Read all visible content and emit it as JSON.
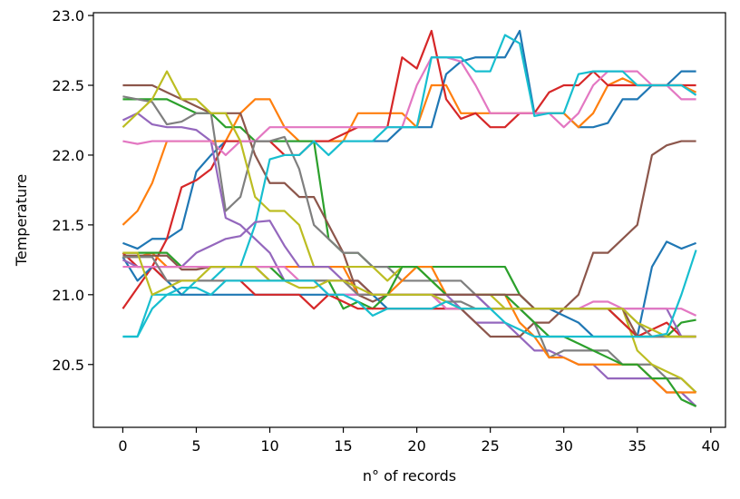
{
  "chart_data": {
    "type": "line",
    "title": "",
    "xlabel": "n° of records",
    "ylabel": "Temperature",
    "xlim": [
      -2,
      41
    ],
    "ylim": [
      20.05,
      23.02
    ],
    "xticks": [
      0,
      5,
      10,
      15,
      20,
      25,
      30,
      35,
      40
    ],
    "xtick_labels": [
      "0",
      "5",
      "10",
      "15",
      "20",
      "25",
      "30",
      "35",
      "40"
    ],
    "yticks": [
      20.5,
      21.0,
      21.5,
      22.0,
      22.5,
      23.0
    ],
    "ytick_labels": [
      "20.5",
      "21.0",
      "21.5",
      "22.0",
      "22.5",
      "23.0"
    ],
    "grid": false,
    "legend": "none",
    "series": [
      {
        "color": "#1f77b4",
        "values": [
          21.37,
          21.33,
          21.4,
          21.4,
          21.47,
          21.88,
          22.0,
          22.1,
          22.1,
          22.1,
          22.1,
          22.1,
          22.1,
          22.1,
          22.1,
          22.1,
          22.1,
          22.1,
          22.1,
          22.2,
          22.2,
          22.2,
          22.58,
          22.67,
          22.7,
          22.7,
          22.7,
          22.89,
          22.3,
          22.3,
          22.3,
          22.2,
          22.2,
          22.23,
          22.4,
          22.4,
          22.5,
          22.5,
          22.6,
          22.6
        ]
      },
      {
        "color": "#ff7f0e",
        "values": [
          21.5,
          21.6,
          21.8,
          22.1,
          22.1,
          22.1,
          22.1,
          22.1,
          22.3,
          22.4,
          22.4,
          22.2,
          22.1,
          22.1,
          22.1,
          22.1,
          22.3,
          22.3,
          22.3,
          22.3,
          22.2,
          22.5,
          22.5,
          22.3,
          22.3,
          22.3,
          22.3,
          22.3,
          22.3,
          22.3,
          22.3,
          22.2,
          22.3,
          22.5,
          22.55,
          22.5,
          22.5,
          22.5,
          22.5,
          22.45
        ]
      },
      {
        "color": "#2ca02c",
        "values": [
          22.4,
          22.4,
          22.4,
          22.4,
          22.35,
          22.3,
          22.3,
          22.2,
          22.2,
          22.1,
          22.1,
          22.1,
          22.1,
          22.1,
          21.4,
          21.3,
          21.3,
          21.2,
          21.2,
          21.2,
          21.2,
          21.2,
          21.2,
          21.2,
          21.2,
          21.2,
          21.2,
          21.0,
          20.9,
          20.9,
          20.9,
          20.9,
          20.9,
          20.9,
          20.8,
          20.7,
          20.7,
          20.7,
          20.8,
          20.82
        ]
      },
      {
        "color": "#d62728",
        "values": [
          20.9,
          21.05,
          21.2,
          21.4,
          21.77,
          21.82,
          21.9,
          22.1,
          22.1,
          22.1,
          22.1,
          22.0,
          22.0,
          22.1,
          22.1,
          22.15,
          22.2,
          22.2,
          22.2,
          22.7,
          22.62,
          22.89,
          22.4,
          22.26,
          22.3,
          22.2,
          22.2,
          22.3,
          22.3,
          22.45,
          22.5,
          22.5,
          22.6,
          22.5,
          22.5,
          22.5,
          22.5,
          22.5,
          22.5,
          22.5
        ]
      },
      {
        "color": "#9467bd",
        "values": [
          22.25,
          22.3,
          22.22,
          22.2,
          22.2,
          22.18,
          22.1,
          21.55,
          21.5,
          21.4,
          21.3,
          21.1,
          21.1,
          21.1,
          21.1,
          21.1,
          21.0,
          21.0,
          21.0,
          21.0,
          21.0,
          21.0,
          21.0,
          20.9,
          20.8,
          20.8,
          20.8,
          20.7,
          20.6,
          20.6,
          20.55,
          20.5,
          20.5,
          20.4,
          20.4,
          20.4,
          20.4,
          20.3,
          20.3,
          20.2
        ]
      },
      {
        "color": "#8c564b",
        "values": [
          22.5,
          22.5,
          22.5,
          22.45,
          22.4,
          22.35,
          22.3,
          22.3,
          22.3,
          22.0,
          21.8,
          21.8,
          21.7,
          21.7,
          21.5,
          21.3,
          21.0,
          20.95,
          21.0,
          21.0,
          21.0,
          21.0,
          20.9,
          20.9,
          20.8,
          20.7,
          20.7,
          20.7,
          20.8,
          20.8,
          20.9,
          21.0,
          21.3,
          21.3,
          21.4,
          21.5,
          22.0,
          22.07,
          22.1,
          22.1
        ]
      },
      {
        "color": "#e377c2",
        "values": [
          22.1,
          22.08,
          22.1,
          22.1,
          22.1,
          22.1,
          22.1,
          22.0,
          22.1,
          22.1,
          22.2,
          22.2,
          22.2,
          22.2,
          22.2,
          22.2,
          22.2,
          22.2,
          22.2,
          22.2,
          22.5,
          22.7,
          22.7,
          22.67,
          22.5,
          22.3,
          22.3,
          22.3,
          22.3,
          22.3,
          22.2,
          22.3,
          22.5,
          22.6,
          22.6,
          22.6,
          22.5,
          22.5,
          22.4,
          22.4
        ]
      },
      {
        "color": "#7f7f7f",
        "values": [
          22.42,
          22.4,
          22.38,
          22.22,
          22.24,
          22.3,
          22.3,
          21.6,
          21.7,
          22.1,
          22.1,
          22.13,
          21.9,
          21.5,
          21.4,
          21.3,
          21.3,
          21.2,
          21.2,
          21.1,
          21.1,
          21.1,
          21.1,
          21.1,
          21.0,
          20.9,
          20.9,
          20.9,
          20.8,
          20.55,
          20.6,
          20.6,
          20.6,
          20.6,
          20.5,
          20.5,
          20.5,
          20.4,
          20.4,
          20.3
        ]
      },
      {
        "color": "#bcbd22",
        "values": [
          22.2,
          22.3,
          22.4,
          22.6,
          22.4,
          22.4,
          22.3,
          22.3,
          22.1,
          21.7,
          21.6,
          21.6,
          21.5,
          21.2,
          21.2,
          21.2,
          21.2,
          21.2,
          21.1,
          21.2,
          21.2,
          21.1,
          21.0,
          21.0,
          21.0,
          21.0,
          20.9,
          20.9,
          20.9,
          20.9,
          20.9,
          20.9,
          20.9,
          20.9,
          20.9,
          20.6,
          20.5,
          20.45,
          20.4,
          20.3
        ]
      },
      {
        "color": "#17becf",
        "values": [
          20.7,
          20.7,
          21.0,
          21.0,
          21.0,
          21.1,
          21.1,
          21.2,
          21.2,
          21.5,
          21.97,
          22.0,
          22.0,
          22.1,
          22.0,
          22.1,
          22.1,
          22.1,
          22.2,
          22.2,
          22.2,
          22.7,
          22.7,
          22.7,
          22.6,
          22.6,
          22.86,
          22.8,
          22.28,
          22.3,
          22.3,
          22.58,
          22.6,
          22.6,
          22.6,
          22.5,
          22.5,
          22.5,
          22.5,
          22.43
        ]
      },
      {
        "color": "#1f77b4",
        "values": [
          21.27,
          21.1,
          21.2,
          21.1,
          21.0,
          21.0,
          21.0,
          21.0,
          21.0,
          21.0,
          21.0,
          21.0,
          21.0,
          21.0,
          21.0,
          21.0,
          21.0,
          21.0,
          20.9,
          20.9,
          20.9,
          20.9,
          20.9,
          20.9,
          20.9,
          20.9,
          20.9,
          20.9,
          20.9,
          20.9,
          20.85,
          20.8,
          20.7,
          20.7,
          20.7,
          20.7,
          21.2,
          21.38,
          21.33,
          21.37
        ]
      },
      {
        "color": "#ff7f0e",
        "values": [
          21.27,
          21.27,
          21.3,
          21.2,
          21.2,
          21.2,
          21.2,
          21.2,
          21.2,
          21.2,
          21.2,
          21.2,
          21.2,
          21.2,
          21.2,
          21.2,
          21.0,
          21.0,
          21.0,
          21.1,
          21.2,
          21.2,
          21.0,
          21.0,
          21.0,
          21.0,
          21.0,
          20.8,
          20.7,
          20.55,
          20.55,
          20.5,
          20.5,
          20.5,
          20.5,
          20.5,
          20.4,
          20.3,
          20.3,
          20.3
        ]
      },
      {
        "color": "#2ca02c",
        "values": [
          21.3,
          21.3,
          21.3,
          21.3,
          21.2,
          21.2,
          21.2,
          21.2,
          21.2,
          21.2,
          21.2,
          21.1,
          21.1,
          21.1,
          21.1,
          20.9,
          20.95,
          20.9,
          21.0,
          21.2,
          21.2,
          21.1,
          21.0,
          21.0,
          21.0,
          21.0,
          21.0,
          20.9,
          20.8,
          20.7,
          20.7,
          20.65,
          20.6,
          20.55,
          20.5,
          20.5,
          20.4,
          20.4,
          20.25,
          20.2
        ]
      },
      {
        "color": "#d62728",
        "values": [
          21.3,
          21.2,
          21.2,
          21.1,
          21.1,
          21.1,
          21.1,
          21.1,
          21.1,
          21.0,
          21.0,
          21.0,
          21.0,
          20.9,
          21.0,
          20.95,
          20.9,
          20.9,
          20.9,
          20.9,
          20.9,
          20.9,
          20.9,
          20.9,
          20.9,
          20.9,
          20.9,
          20.9,
          20.9,
          20.9,
          20.9,
          20.9,
          20.9,
          20.9,
          20.8,
          20.7,
          20.75,
          20.8,
          20.7,
          20.7
        ]
      },
      {
        "color": "#9467bd",
        "values": [
          21.25,
          21.2,
          21.2,
          21.2,
          21.2,
          21.3,
          21.35,
          21.4,
          21.42,
          21.52,
          21.53,
          21.35,
          21.2,
          21.2,
          21.2,
          21.1,
          21.1,
          21.0,
          21.0,
          21.0,
          21.0,
          21.0,
          21.0,
          21.0,
          21.0,
          20.9,
          20.9,
          20.9,
          20.9,
          20.9,
          20.9,
          20.9,
          20.9,
          20.9,
          20.9,
          20.9,
          20.9,
          20.9,
          20.7,
          20.7
        ]
      },
      {
        "color": "#8c564b",
        "values": [
          21.28,
          21.28,
          21.28,
          21.28,
          21.18,
          21.18,
          21.2,
          21.2,
          21.2,
          21.2,
          21.1,
          21.1,
          21.1,
          21.1,
          21.1,
          21.1,
          21.1,
          21.0,
          21.0,
          21.0,
          21.0,
          21.0,
          21.0,
          21.0,
          21.0,
          21.0,
          21.0,
          21.0,
          20.9,
          20.9,
          20.9,
          20.9,
          20.9,
          20.9,
          20.9,
          20.7,
          20.7,
          20.7,
          20.7,
          20.7
        ]
      },
      {
        "color": "#e377c2",
        "values": [
          21.2,
          21.2,
          21.2,
          21.2,
          21.2,
          21.2,
          21.2,
          21.2,
          21.2,
          21.2,
          21.2,
          21.2,
          21.1,
          21.1,
          21.0,
          21.0,
          21.0,
          21.0,
          21.0,
          21.0,
          21.0,
          21.0,
          20.9,
          20.9,
          20.9,
          20.9,
          20.9,
          20.9,
          20.9,
          20.9,
          20.9,
          20.9,
          20.95,
          20.95,
          20.9,
          20.9,
          20.9,
          20.9,
          20.9,
          20.85
        ]
      },
      {
        "color": "#7f7f7f",
        "values": [
          21.27,
          21.27,
          21.27,
          21.1,
          21.1,
          21.1,
          21.1,
          21.1,
          21.1,
          21.1,
          21.1,
          21.1,
          21.1,
          21.1,
          21.1,
          21.1,
          21.0,
          21.0,
          21.0,
          21.0,
          21.0,
          21.0,
          20.95,
          20.95,
          20.9,
          20.9,
          20.9,
          20.9,
          20.9,
          20.9,
          20.9,
          20.9,
          20.9,
          20.9,
          20.9,
          20.8,
          20.7,
          20.7,
          20.7,
          20.7
        ]
      },
      {
        "color": "#bcbd22",
        "values": [
          21.3,
          21.3,
          21.0,
          21.05,
          21.1,
          21.1,
          21.2,
          21.2,
          21.2,
          21.2,
          21.1,
          21.1,
          21.05,
          21.05,
          21.1,
          21.1,
          21.05,
          21.0,
          21.0,
          21.0,
          21.0,
          21.0,
          20.95,
          20.9,
          20.9,
          20.9,
          20.9,
          20.9,
          20.9,
          20.9,
          20.9,
          20.9,
          20.9,
          20.9,
          20.9,
          20.8,
          20.75,
          20.7,
          20.7,
          20.7
        ]
      },
      {
        "color": "#17becf",
        "values": [
          20.7,
          20.7,
          20.9,
          21.0,
          21.05,
          21.05,
          21.0,
          21.1,
          21.1,
          21.1,
          21.1,
          21.1,
          21.1,
          21.1,
          21.0,
          21.0,
          20.95,
          20.85,
          20.9,
          20.9,
          20.9,
          20.9,
          20.95,
          20.9,
          20.9,
          20.9,
          20.8,
          20.75,
          20.7,
          20.7,
          20.7,
          20.7,
          20.7,
          20.7,
          20.7,
          20.7,
          20.7,
          20.72,
          21.0,
          21.32
        ]
      }
    ]
  }
}
